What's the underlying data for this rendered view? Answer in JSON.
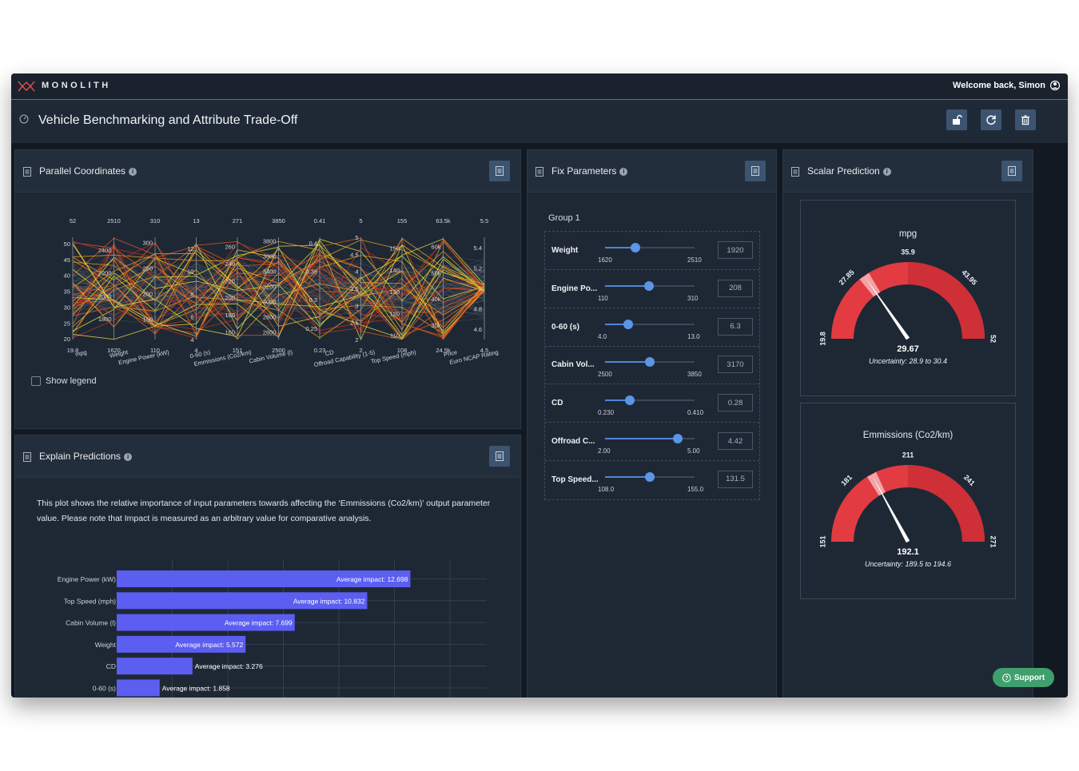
{
  "app": {
    "brand": "MONOLITH",
    "welcome": "Welcome back, Simon",
    "page_title": "Vehicle Benchmarking and Attribute Trade-Off",
    "accent": "#c94a4a"
  },
  "panels": {
    "parallel": {
      "title": "Parallel Coordinates",
      "legend_toggle": "Show legend"
    },
    "fix": {
      "title": "Fix Parameters",
      "group": "Group 1"
    },
    "scalar": {
      "title": "Scalar Prediction"
    },
    "explain": {
      "title": "Explain Predictions",
      "text": "This plot shows the relative importance of input parameters towards affecting the ‘Emmissions (Co2/km)’ output parameter value. Please note that Impact is measured as an arbitrary value for comparative analysis."
    }
  },
  "fix_parameters": [
    {
      "label": "Weight",
      "min": "1620",
      "max": "2510",
      "value": "1920",
      "fraction": 0.34
    },
    {
      "label": "Engine Po...",
      "min": "110",
      "max": "310",
      "value": "208",
      "fraction": 0.49
    },
    {
      "label": "0-60 (s)",
      "min": "4.0",
      "max": "13.0",
      "value": "6.3",
      "fraction": 0.26
    },
    {
      "label": "Cabin Vol...",
      "min": "2500",
      "max": "3850",
      "value": "3170",
      "fraction": 0.5
    },
    {
      "label": "CD",
      "min": "0.230",
      "max": "0.410",
      "value": "0.28",
      "fraction": 0.28
    },
    {
      "label": "Offroad C...",
      "min": "2.00",
      "max": "5.00",
      "value": "4.42",
      "fraction": 0.81
    },
    {
      "label": "Top Speed...",
      "min": "108.0",
      "max": "155.0",
      "value": "131.5",
      "fraction": 0.5
    }
  ],
  "gauges": [
    {
      "title": "mpg",
      "min": 19.8,
      "max": 52,
      "min_label": "19.8",
      "max_label": "52",
      "mid_label": "35.9",
      "low_label": "27.85",
      "high_label": "43.95",
      "value": 29.67,
      "value_label": "29.67",
      "uncertainty": "Uncertainty: 28.9 to 30.4",
      "unc_low": 28.9,
      "unc_high": 30.4
    },
    {
      "title": "Emmissions (Co2/km)",
      "min": 151,
      "max": 271,
      "min_label": "151",
      "max_label": "271",
      "mid_label": "211",
      "low_label": "181",
      "high_label": "241",
      "value": 192.1,
      "value_label": "192.1",
      "uncertainty": "Uncertainty: 189.5 to 194.6",
      "unc_low": 189.5,
      "unc_high": 194.6
    }
  ],
  "chart_data": [
    {
      "type": "parallel_coordinates",
      "axes": [
        {
          "label": "mpg",
          "min": 19.8,
          "max": 52,
          "top": "52",
          "bottom": "19.8",
          "ticks": [
            "50",
            "45",
            "40",
            "35",
            "30",
            "25",
            "20"
          ],
          "tick_values": [
            50,
            45,
            40,
            35,
            30,
            25,
            20
          ]
        },
        {
          "label": "Weight",
          "min": 1620,
          "max": 2510,
          "top": "2510",
          "bottom": "1620",
          "ticks": [
            "2400",
            "2200",
            "2000",
            "1800"
          ],
          "tick_values": [
            2400,
            2200,
            2000,
            1800
          ]
        },
        {
          "label": "Engine Power (kW)",
          "min": 110,
          "max": 310,
          "top": "310",
          "bottom": "110",
          "ticks": [
            "300",
            "250",
            "200",
            "150"
          ],
          "tick_values": [
            300,
            250,
            200,
            150
          ]
        },
        {
          "label": "0-60 (s)",
          "min": 4,
          "max": 13,
          "top": "13",
          "bottom": "4",
          "ticks": [
            "12",
            "10",
            "8",
            "6",
            "4"
          ],
          "tick_values": [
            12,
            10,
            8,
            6,
            4
          ]
        },
        {
          "label": "Emmissions (Co2/km)",
          "min": 151,
          "max": 271,
          "top": "271",
          "bottom": "151",
          "ticks": [
            "260",
            "240",
            "220",
            "200",
            "180",
            "160"
          ],
          "tick_values": [
            260,
            240,
            220,
            200,
            180,
            160
          ]
        },
        {
          "label": "Cabin Volume (l)",
          "min": 2500,
          "max": 3850,
          "top": "3850",
          "bottom": "2500",
          "ticks": [
            "3800",
            "3600",
            "3400",
            "3200",
            "3000",
            "2800",
            "2600"
          ],
          "tick_values": [
            3800,
            3600,
            3400,
            3200,
            3000,
            2800,
            2600
          ]
        },
        {
          "label": "CD",
          "min": 0.23,
          "max": 0.41,
          "top": "0.41",
          "bottom": "0.23",
          "ticks": [
            "0.4",
            "0.35",
            "0.3",
            "0.25"
          ],
          "tick_values": [
            0.4,
            0.35,
            0.3,
            0.25
          ]
        },
        {
          "label": "Offroad Capability (1-5)",
          "min": 2,
          "max": 5,
          "top": "5",
          "bottom": "2",
          "ticks": [
            "5",
            "4.5",
            "4",
            "3.5",
            "3",
            "2.5",
            "2"
          ],
          "tick_values": [
            5,
            4.5,
            4,
            3.5,
            3,
            2.5,
            2
          ]
        },
        {
          "label": "Top Speed (mph)",
          "min": 108,
          "max": 155,
          "top": "155",
          "bottom": "108",
          "ticks": [
            "150",
            "140",
            "130",
            "120",
            "110"
          ],
          "tick_values": [
            150,
            140,
            130,
            120,
            110
          ]
        },
        {
          "label": "Price",
          "min": 24.5,
          "max": 63.5,
          "top": "63.5k",
          "bottom": "24.5k",
          "ticks": [
            "60k",
            "50k",
            "40k",
            "30k"
          ],
          "tick_values": [
            60,
            50,
            40,
            30
          ]
        },
        {
          "label": "Euro NCAP Rating",
          "min": 4.5,
          "max": 5.5,
          "top": "5.5",
          "bottom": "4.5",
          "ticks": [
            "5.4",
            "5.2",
            "5",
            "4.8",
            "4.6"
          ],
          "tick_values": [
            5.4,
            5.2,
            5,
            4.8,
            4.6
          ]
        }
      ],
      "highlight_colors": [
        "#e8e23a",
        "#f0a020",
        "#e85a1e",
        "#c8301a"
      ]
    },
    {
      "type": "bar",
      "orientation": "horizontal",
      "categories": [
        "Engine Power (kW)",
        "Top Speed (mph)",
        "Cabin Volume (l)",
        "Weight",
        "CD",
        "0-60 (s)"
      ],
      "values": [
        12.698,
        10.832,
        7.699,
        5.572,
        3.276,
        1.858
      ],
      "value_labels": [
        "Average impact: 12.698",
        "Average impact: 10.832",
        "Average impact: 7.699",
        "Average impact: 5.572",
        "Average impact: 3.276",
        "Average impact: 1.858"
      ],
      "xlim": [
        0,
        16
      ],
      "bar_color": "#5b5ef0"
    }
  ],
  "support": "Support"
}
